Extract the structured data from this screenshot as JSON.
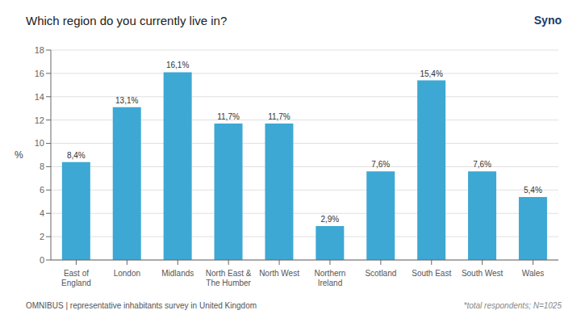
{
  "chart_data": {
    "type": "bar",
    "title": "Which region do you currently live in?",
    "categories": [
      "East of\nEngland",
      "London",
      "Midlands",
      "North East &\nThe Humber",
      "North West",
      "Northern\nIreland",
      "Scotland",
      "South East",
      "South West",
      "Wales"
    ],
    "values": [
      8.4,
      13.1,
      16.1,
      11.7,
      11.7,
      2.9,
      7.6,
      15.4,
      7.6,
      5.4
    ],
    "value_labels": [
      "8,4%",
      "13,1%",
      "16,1%",
      "11,7%",
      "11,7%",
      "2,9%",
      "7,6%",
      "15,4%",
      "7,6%",
      "5,4%"
    ],
    "color": "#3da8d4",
    "ylabel": "%",
    "ylim": [
      0,
      18
    ],
    "yticks": [
      0,
      2,
      4,
      6,
      8,
      10,
      12,
      14,
      16,
      18
    ],
    "grid": true,
    "annotations": [
      "OMNIBUS | representative inhabitants survey in United Kingdom",
      "*total respondents; N=1025",
      "Syno"
    ]
  }
}
